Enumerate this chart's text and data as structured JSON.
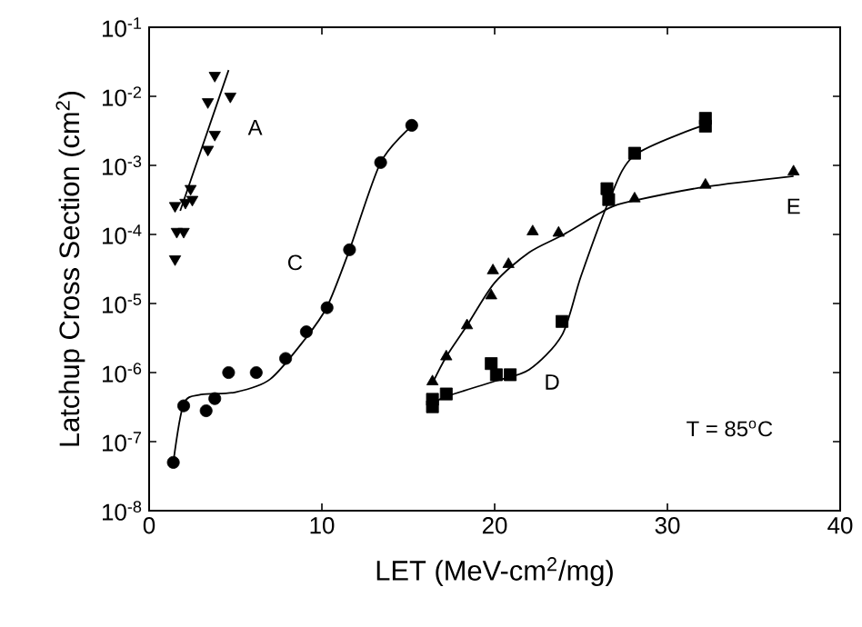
{
  "chart_data": {
    "type": "scatter",
    "xlabel": "LET (MeV-cm$^{2}$/mg)",
    "ylabel": "Latchup Cross Section (cm$^{2}$)",
    "log": "y",
    "xlim": [
      0,
      40
    ],
    "xticks": [
      0,
      10,
      20,
      30,
      40
    ],
    "ylim": [
      1e-08,
      0.1
    ],
    "yticks": [
      {
        "value": 1e-08,
        "label": "10$^{-8}$"
      },
      {
        "value": 1e-07,
        "label": "10$^{-7}$"
      },
      {
        "value": 1e-06,
        "label": "10$^{-6}$"
      },
      {
        "value": 1e-05,
        "label": "10$^{-5}$"
      },
      {
        "value": 0.0001,
        "label": "10$^{-4}$"
      },
      {
        "value": 0.001,
        "label": "10$^{-3}$"
      },
      {
        "value": 0.01,
        "label": "10$^{-2}$"
      },
      {
        "value": 0.1,
        "label": "10$^{-1}$"
      }
    ],
    "annotations": [
      "T = 85$^{o}$C"
    ],
    "series": [
      {
        "name": "A",
        "marker": "triangle-down",
        "color": "#000000",
        "x": [
          1.5,
          1.6,
          2.0,
          1.5,
          2.1,
          2.5,
          2.4,
          3.4,
          3.8,
          3.4,
          4.7,
          3.8
        ],
        "values": [
          4.4e-05,
          0.00011,
          0.00011,
          0.00026,
          0.00029,
          0.00032,
          0.00046,
          0.0017,
          0.0028,
          0.0083,
          0.01,
          0.02
        ]
      },
      {
        "type": "line",
        "marker": "none",
        "line_style": "solid",
        "color": "#000000",
        "x": [
          1.8,
          4.6
        ],
        "values": [
          0.00022,
          0.024
        ]
      },
      {
        "name": "C",
        "marker": "circle",
        "color": "#000000",
        "x": [
          1.4,
          2.0,
          3.3,
          3.8,
          4.6,
          6.2,
          7.9,
          9.1,
          10.3,
          11.6,
          13.4,
          15.2
        ],
        "values": [
          5e-08,
          3.3e-07,
          2.8e-07,
          4.2e-07,
          1e-06,
          1e-06,
          1.6e-06,
          3.9e-06,
          8.7e-06,
          6e-05,
          0.0011,
          0.0038
        ]
      },
      {
        "type": "line",
        "marker": "none",
        "line_style": "solid",
        "color": "#000000",
        "x": [
          1.4,
          2.0,
          3.0,
          5.0,
          7.0,
          9.0,
          10.3,
          11.6,
          13.4,
          15.2
        ],
        "values": [
          5e-08,
          3.5e-07,
          4.8e-07,
          5.2e-07,
          8e-07,
          3e-06,
          9e-06,
          6e-05,
          0.0011,
          0.0037
        ]
      },
      {
        "name": "D",
        "marker": "square",
        "color": "#000000",
        "x": [
          16.4,
          16.4,
          17.2,
          19.8,
          20.1,
          20.9,
          23.9,
          26.5,
          26.6,
          28.1,
          32.2,
          32.2
        ],
        "values": [
          3.2e-07,
          4.1e-07,
          4.9e-07,
          1.35e-06,
          9.3e-07,
          9.3e-07,
          5.5e-06,
          0.00046,
          0.00032,
          0.0015,
          0.0048,
          0.0037
        ]
      },
      {
        "type": "line",
        "marker": "none",
        "line_style": "solid",
        "color": "#000000",
        "x": [
          16.4,
          17.2,
          20.0,
          22.0,
          23.9,
          25.0,
          26.6,
          28.1,
          32.2
        ],
        "values": [
          3.5e-07,
          4.5e-07,
          7.5e-07,
          1.1e-06,
          3.5e-06,
          2.5e-05,
          0.0003,
          0.0014,
          0.0039
        ]
      },
      {
        "name": "E",
        "marker": "triangle",
        "color": "#000000",
        "x": [
          16.4,
          17.2,
          18.4,
          19.8,
          19.9,
          20.8,
          22.2,
          23.7,
          28.1,
          32.2,
          37.3
        ],
        "values": [
          7.4e-07,
          1.7e-06,
          4.8e-06,
          1.3e-05,
          3e-05,
          3.7e-05,
          0.00011,
          0.000105,
          0.00033,
          0.00052,
          0.00081
        ]
      },
      {
        "type": "line",
        "marker": "none",
        "line_style": "solid",
        "color": "#000000",
        "x": [
          16.4,
          17.2,
          18.4,
          20.0,
          22.0,
          24.0,
          26.6,
          28.1,
          32.2,
          37.3
        ],
        "values": [
          7e-07,
          1.7e-06,
          4.8e-06,
          2e-05,
          5.5e-05,
          0.0001,
          0.00024,
          0.00031,
          0.00049,
          0.0007
        ]
      }
    ]
  }
}
